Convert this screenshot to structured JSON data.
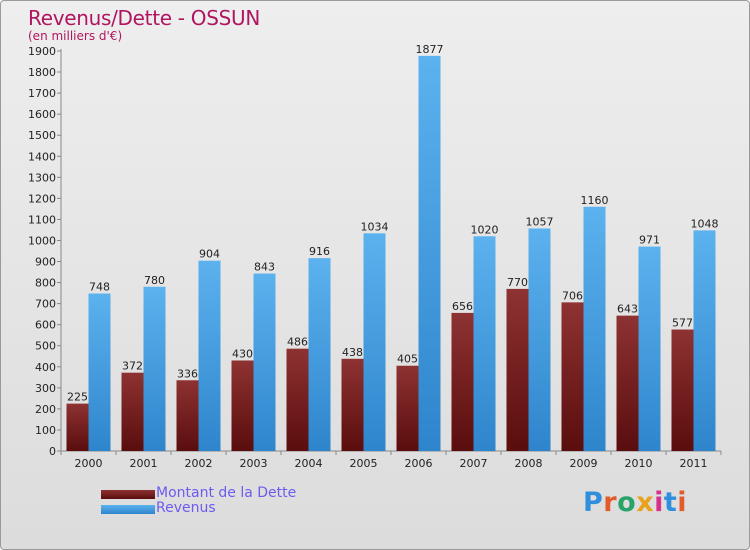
{
  "chart_data": {
    "type": "bar",
    "title": "Revenus/Dette - OSSUN",
    "subtitle": "(en milliers d'€)",
    "categories": [
      "2000",
      "2001",
      "2002",
      "2003",
      "2004",
      "2005",
      "2006",
      "2007",
      "2008",
      "2009",
      "2010",
      "2011"
    ],
    "series": [
      {
        "name": "Montant de la Dette",
        "values": [
          225,
          372,
          336,
          430,
          486,
          438,
          405,
          656,
          770,
          706,
          643,
          577
        ],
        "color": "#7a1c1c"
      },
      {
        "name": "Revenus",
        "values": [
          748,
          780,
          904,
          843,
          916,
          1034,
          1877,
          1020,
          1057,
          1160,
          971,
          1048
        ],
        "color": "#4aa3e6"
      }
    ],
    "ylim": [
      0,
      1900
    ],
    "ytick_step": 100,
    "grid": false,
    "legend_position": "bottom-left"
  },
  "logo": {
    "text": "Proxiti",
    "colors": [
      "#2f8fdd",
      "#e25b2b",
      "#29a36a",
      "#e8a21c",
      "#d7318c",
      "#2f8fdd",
      "#e25b2b"
    ]
  }
}
